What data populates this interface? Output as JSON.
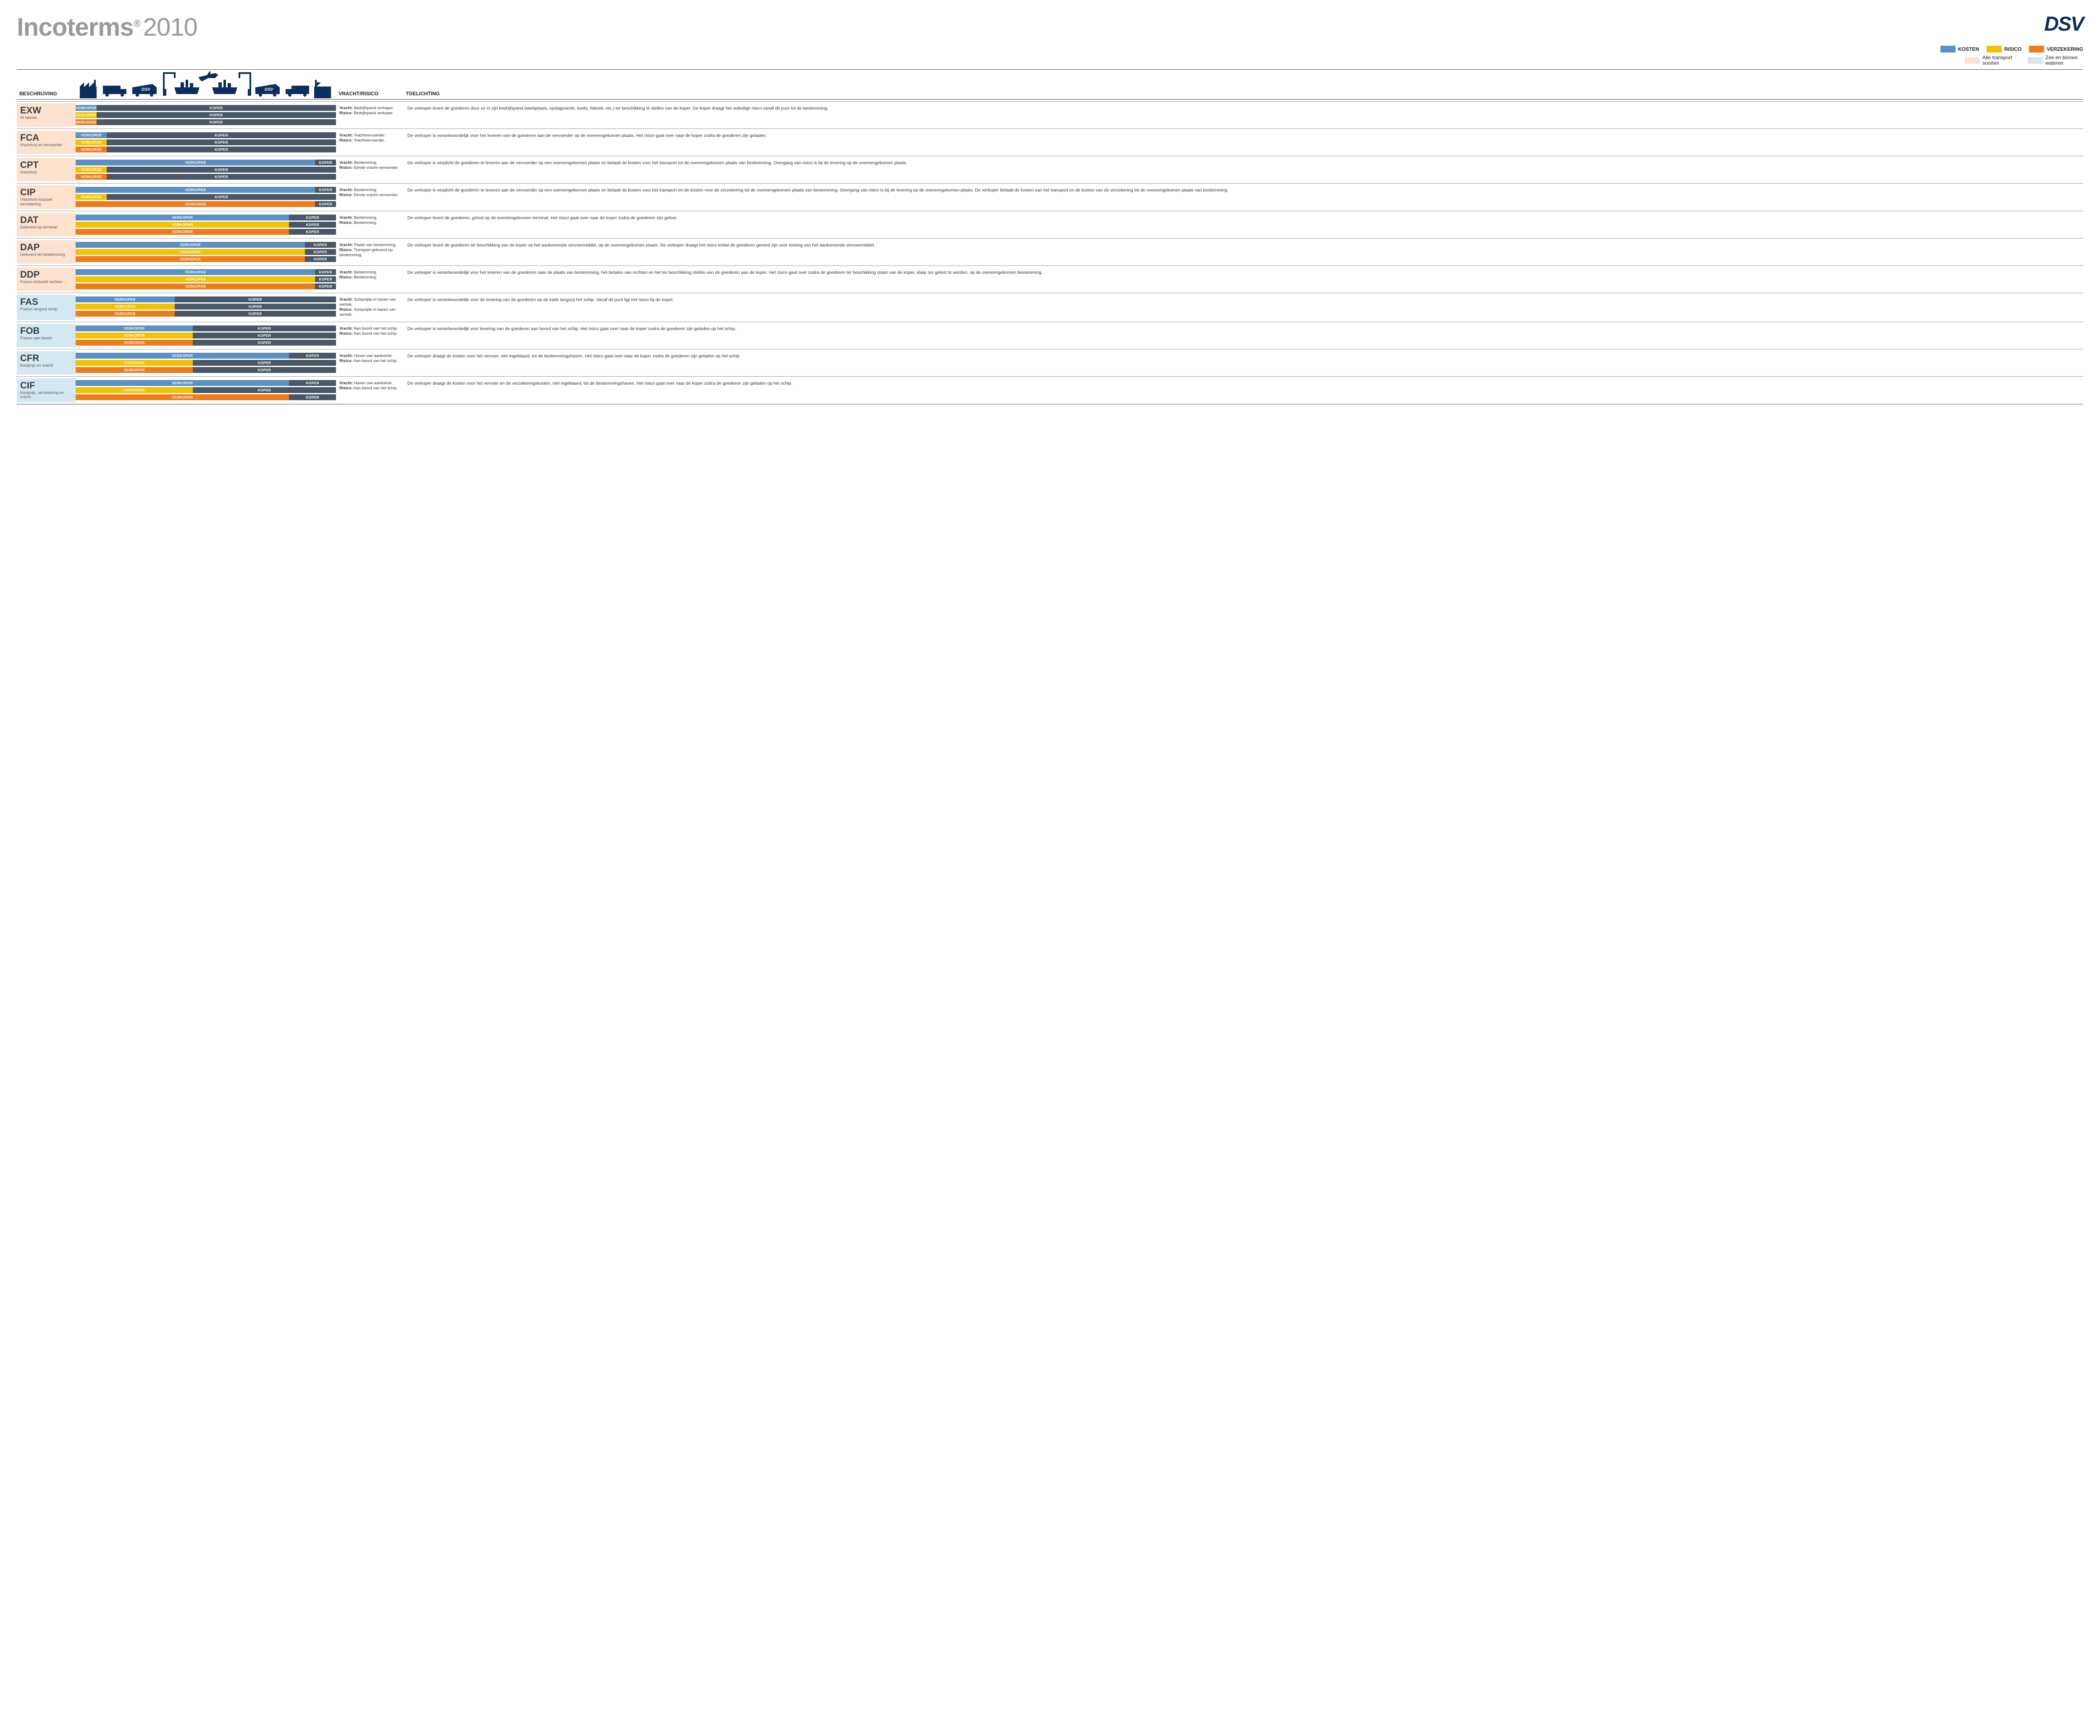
{
  "title_main": "Incoterms",
  "title_reg": "®",
  "title_year": "2010",
  "logo_text": "DSV",
  "legend": {
    "kosten": {
      "label": "KOSTEN",
      "color": "#5a90c2"
    },
    "risico": {
      "label": "RISICO",
      "color": "#f2c100"
    },
    "verzekering": {
      "label": "VERZEKERING",
      "color": "#f07b1a"
    },
    "all_modes": {
      "label": "Alle transport soorten",
      "color": "#fce2cf"
    },
    "sea": {
      "label": "Zee en binnen wateren",
      "color": "#d4e8f1"
    }
  },
  "headers": {
    "desc": "BESCHRIJVING",
    "vracht": "VRACHT/RISICO",
    "toel": "TOELICHTING"
  },
  "labels": {
    "seller": "VERKOPER",
    "buyer": "KOPER"
  },
  "colors": {
    "kosten": "#5a90c2",
    "risico": "#f2c100",
    "verzekering": "#f07b1a",
    "rest": "#4a5766",
    "seg_text": "#ffffff",
    "navy": "#0b2e5e"
  },
  "bar_waypoints_pct": [
    0,
    8,
    19,
    31,
    44,
    57,
    69,
    81,
    92,
    100
  ],
  "terms": [
    {
      "code": "EXW",
      "sub": "Af fabriek",
      "group": "any",
      "bars": [
        {
          "type": "kosten",
          "split": 8
        },
        {
          "type": "risico",
          "split": 8
        },
        {
          "type": "verzekering",
          "split": 8
        }
      ],
      "vracht": "<b>Vracht:</b> Bedrijfspand verkoper.<br><b>Risico:</b> Bedrijfspand verkoper.",
      "toel": "De verkoper levert de goederen door ze in zijn bedrijfspand (werkplaats, opslagruimte, loods, fabriek, etc.) ter beschikking te stellen van de koper. De koper draagt het volledige risico vanaf dit punt tot de bestemming."
    },
    {
      "code": "FCA",
      "sub": "Vrachtvrij tot vervoerder",
      "group": "any",
      "bars": [
        {
          "type": "kosten",
          "split": 12
        },
        {
          "type": "risico",
          "split": 12
        },
        {
          "type": "verzekering",
          "split": 12
        }
      ],
      "vracht": "<b>Vracht:</b> Vrachtvervoerder.<br><b>Risico:</b> Vrachtvervoerder.",
      "toel": "De verkoper is verantwoordelijk voor het leveren van de goederen aan de vervoerder op de overeengekomen plaats. Het risico gaat over naar de koper zodra de goederen zijn geladen."
    },
    {
      "code": "CPT",
      "sub": "Vrachtvrij",
      "group": "any",
      "bars": [
        {
          "type": "kosten",
          "split": 92
        },
        {
          "type": "risico",
          "split": 12
        },
        {
          "type": "verzekering",
          "split": 12
        }
      ],
      "vracht": "<b>Vracht:</b> Bestemming.<br><b>Risico:</b> Eerste vracht-vervoerder.",
      "toel": "De verkoper is verplicht de goederen te leveren aan de vervoerder op een overeengekomen plaats en betaalt de kosten voor het transport tot de overeengekomen plaats van bestemming. Overgang van risico is bij de levering op de overeengekomen plaats."
    },
    {
      "code": "CIP",
      "sub": "Vrachtvrij inclusief verzekering",
      "group": "any",
      "bars": [
        {
          "type": "kosten",
          "split": 92
        },
        {
          "type": "risico",
          "split": 12
        },
        {
          "type": "verzekering",
          "split": 92
        }
      ],
      "vracht": "<b>Vracht:</b> Bestemming.<br><b>Risico:</b> Eerste vracht-vervoerder.",
      "toel": "De verkoper is verplicht de goederen te leveren aan de vervoerder op een overeengekomen plaats en betaalt de kosten voor het transport en de kosten voor de verzekering tot de overeengekomen plaats van bestemming. Overgang van risico is bij de levering op de overeengekomen plaats. De verkoper betaalt de kosten van het transport en de kosten van de verzekering tot de overeengekomen plaats van bestemming."
    },
    {
      "code": "DAT",
      "sub": "Geleverd op terminal",
      "group": "any",
      "bars": [
        {
          "type": "kosten",
          "split": 82
        },
        {
          "type": "risico",
          "split": 82
        },
        {
          "type": "verzekering",
          "split": 82
        }
      ],
      "vracht": "<b>Vracht:</b> Bestemming.<br><b>Risico:</b> Bestemming.",
      "toel": "De verkoper levert de goederen, gelost op de overeengekomen terminal. Het risico gaat over naar de koper zodra de goederen zijn gelost."
    },
    {
      "code": "DAP",
      "sub": "Geleverd ter bestemming",
      "group": "any",
      "bars": [
        {
          "type": "kosten",
          "split": 88
        },
        {
          "type": "risico",
          "split": 88
        },
        {
          "type": "verzekering",
          "split": 88
        }
      ],
      "vracht": "<b>Vracht:</b> Plaats van bestemming.<br><b>Risico:</b> Transport geleverd op bestemming.",
      "toel": "De verkoper levert de goederen ter beschikking van de koper op het aankomende vervoermiddel, op de overeengekomen plaats. De verkoper draagt het risico totdat de goederen gereed zijn voor lossing van het aankomende vervoermiddel."
    },
    {
      "code": "DDP",
      "sub": "Franco inclusief rechten",
      "group": "any",
      "bars": [
        {
          "type": "kosten",
          "split": 92
        },
        {
          "type": "risico",
          "split": 92
        },
        {
          "type": "verzekering",
          "split": 92
        }
      ],
      "vracht": "<b>Vracht:</b> Bestemming.<br><b>Risico:</b> Bestemming.",
      "toel": "De verkoper is verantwoordelijk voor het leveren van de goederen naar de plaats van bestemming, het betalen van rechten en het ter beschikking stellen van de goederen aan de koper. Het risico gaat over zodra de goederen ter beschikking staan van de koper, klaar om gelost te worden, op de overeengekomen bestemming."
    },
    {
      "code": "FAS",
      "sub": "Franco langszij schip",
      "group": "sea",
      "bars": [
        {
          "type": "kosten",
          "split": 38
        },
        {
          "type": "risico",
          "split": 38
        },
        {
          "type": "verzekering",
          "split": 38
        }
      ],
      "vracht": "<b>Vracht:</b> Schipzijde in haven van vertrek.<br><b>Risico:</b> Schipzijde in haven van vertrek.",
      "toel": "De verkoper is verantwoordelijk voor de levering van de goederen op de kade langszij het schip. Vanaf dit punt ligt het risico bij de koper."
    },
    {
      "code": "FOB",
      "sub": "Franco aan boord",
      "group": "sea",
      "bars": [
        {
          "type": "kosten",
          "split": 45
        },
        {
          "type": "risico",
          "split": 45
        },
        {
          "type": "verzekering",
          "split": 45
        }
      ],
      "vracht": "<b>Vracht:</b> Aan boord van het schip.<br><b>Risico:</b> Aan boord van het schip.",
      "toel": "De verkoper is verantwoordelijk voor levering van de goederen aan boord van het schip. Het risico gaat over naar de koper zodra de goederen zijn geladen op het schip."
    },
    {
      "code": "CFR",
      "sub": "Kostprijs en vracht",
      "group": "sea",
      "bars": [
        {
          "type": "kosten",
          "split": 82
        },
        {
          "type": "risico",
          "split": 45
        },
        {
          "type": "verzekering",
          "split": 45
        }
      ],
      "vracht": "<b>Vracht:</b> Haven van aankomst.<br><b>Risico:</b> Aan boord van het schip.",
      "toel": "De verkoper draagt de kosten voor het vervoer, niet ingeklaard, tot de bestemmingshaven. Het risico gaat over naar de koper zodra de goederen zijn geladen op het schip."
    },
    {
      "code": "CIF",
      "sub": "Kostprijs, verzekering en vracht",
      "group": "sea",
      "bars": [
        {
          "type": "kosten",
          "split": 82
        },
        {
          "type": "risico",
          "split": 45
        },
        {
          "type": "verzekering",
          "split": 82
        }
      ],
      "vracht": "<b>Vracht:</b> Haven van aankomst.<br><b>Risico:</b> Aan boord van het schip.",
      "toel": "De verkoper draagt de kosten voor het vervoer en de verzekeringskosten, niet ingeklaard, tot de bestemmingshaven. Het risico gaat over naar de koper zodra de goederen zijn geladen op het schip."
    }
  ]
}
